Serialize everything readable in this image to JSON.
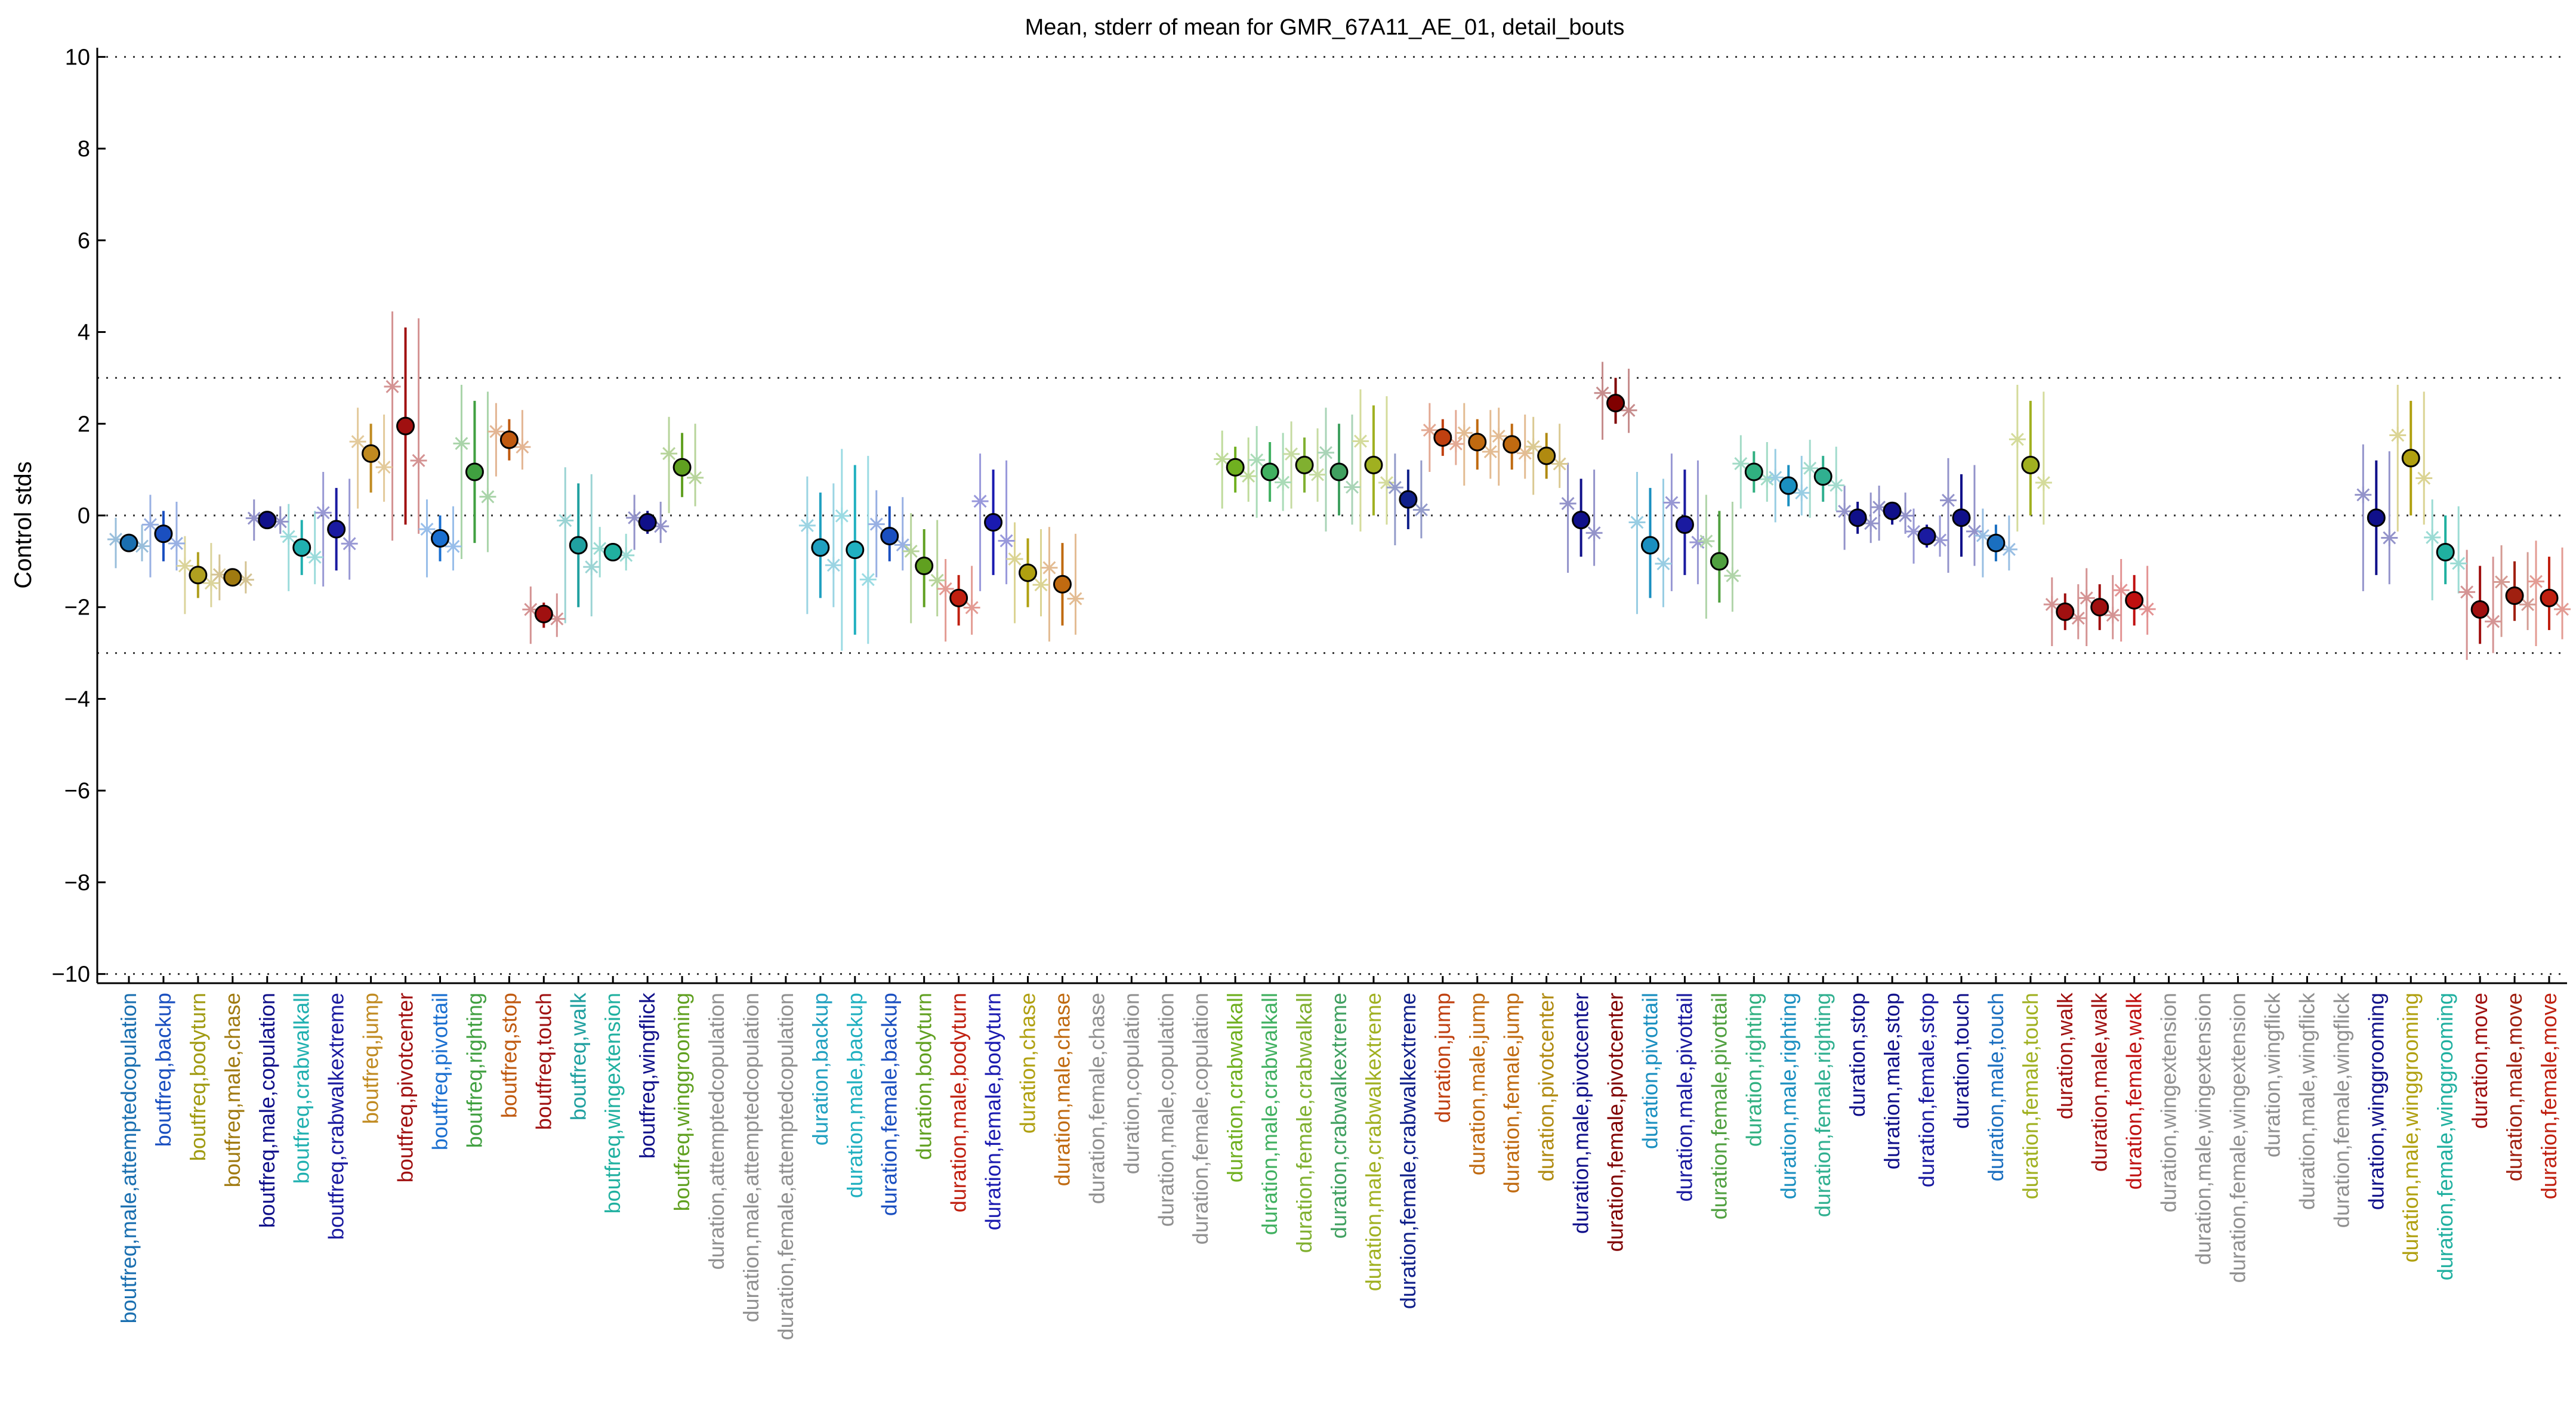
{
  "chart_data": {
    "type": "scatter",
    "title": "Mean, stderr of mean for GMR_67A11_AE_01, detail_bouts",
    "xlabel": "",
    "ylabel": "Control stds",
    "ylim": [
      -10.2,
      10.2
    ],
    "yticks": [
      -10,
      -8,
      -6,
      -4,
      -2,
      0,
      2,
      4,
      6,
      8,
      10
    ],
    "reference_lines": [
      10,
      3,
      0,
      -3,
      -10
    ],
    "grid": false,
    "categories": [
      "boutfreq,male,attemptedcopulation",
      "boutfreq,backup",
      "boutfreq,bodyturn",
      "boutfreq,male,chase",
      "boutfreq,male,copulation",
      "boutfreq,crabwalkall",
      "boutfreq,crabwalkextreme",
      "boutfreq,jump",
      "boutfreq,pivotcenter",
      "boutfreq,pivottail",
      "boutfreq,righting",
      "boutfreq,stop",
      "boutfreq,touch",
      "boutfreq,walk",
      "boutfreq,wingextension",
      "boutfreq,wingflick",
      "boutfreq,winggrooming",
      "duration,attemptedcopulation",
      "duration,male,attemptedcopulation",
      "duration,female,attemptedcopulation",
      "duration,backup",
      "duration,male,backup",
      "duration,female,backup",
      "duration,bodyturn",
      "duration,male,bodyturn",
      "duration,female,bodyturn",
      "duration,chase",
      "duration,male,chase",
      "duration,female,chase",
      "duration,copulation",
      "duration,male,copulation",
      "duration,female,copulation",
      "duration,crabwalkall",
      "duration,male,crabwalkall",
      "duration,female,crabwalkall",
      "duration,crabwalkextreme",
      "duration,male,crabwalkextreme",
      "duration,female,crabwalkextreme",
      "duration,jump",
      "duration,male,jump",
      "duration,female,jump",
      "duration,pivotcenter",
      "duration,male,pivotcenter",
      "duration,female,pivotcenter",
      "duration,pivottail",
      "duration,male,pivottail",
      "duration,female,pivottail",
      "duration,righting",
      "duration,male,righting",
      "duration,female,righting",
      "duration,stop",
      "duration,male,stop",
      "duration,female,stop",
      "duration,touch",
      "duration,male,touch",
      "duration,female,touch",
      "duration,walk",
      "duration,male,walk",
      "duration,female,walk",
      "duration,wingextension",
      "duration,male,wingextension",
      "duration,female,wingextension",
      "duration,wingflick",
      "duration,male,wingflick",
      "duration,female,wingflick",
      "duration,winggrooming",
      "duration,male,winggrooming",
      "duration,female,winggrooming",
      "duration,move",
      "duration,male,move",
      "duration,female,move"
    ],
    "label_colors": [
      "#1a6fb0",
      "#1a4fc0",
      "#a09a10",
      "#a07a10",
      "#10108a",
      "#20b0b0",
      "#1a1aa0",
      "#c08a20",
      "#a01010",
      "#1a6fd0",
      "#40a040",
      "#c05a10",
      "#a01010",
      "#20a0a0",
      "#20b0a0",
      "#10108a",
      "#60a020",
      "#909090",
      "#909090",
      "#909090",
      "#20a0c0",
      "#20b0c0",
      "#1a4fc0",
      "#60a020",
      "#c02010",
      "#1a1ab0",
      "#b0a010",
      "#c06a10",
      "#909090",
      "#909090",
      "#909090",
      "#909090",
      "#70b020",
      "#40b060",
      "#80b030",
      "#40a060",
      "#a0b020",
      "#10208a",
      "#c04010",
      "#c06a10",
      "#c06a10",
      "#b08a10",
      "#10108a",
      "#800000",
      "#1a8fc0",
      "#1a1aa0",
      "#50a040",
      "#30b080",
      "#1a8fc0",
      "#30b090",
      "#10108a",
      "#10108a",
      "#1a1aa0",
      "#10108a",
      "#1a6fc0",
      "#a0b020",
      "#a01010",
      "#a01010",
      "#c01010",
      "#909090",
      "#909090",
      "#909090",
      "#909090",
      "#909090",
      "#909090",
      "#10108a",
      "#b0a010",
      "#20b0a0",
      "#a01010",
      "#a02010",
      "#c02010"
    ],
    "marker_colors": [
      "#1a6fb0",
      "#1a4fc0",
      "#b0a020",
      "#a07a10",
      "#10108a",
      "#20b0b0",
      "#1a1aa0",
      "#c08a20",
      "#a01010",
      "#1a6fd0",
      "#40a040",
      "#c05a10",
      "#a01010",
      "#20a0a0",
      "#20b0a0",
      "#10108a",
      "#60a020",
      null,
      null,
      null,
      "#20a0c0",
      "#20b0c0",
      "#1a4fc0",
      "#60a020",
      "#c02010",
      "#1a1ab0",
      "#b0a010",
      "#c06a10",
      null,
      null,
      null,
      null,
      "#70b020",
      "#40b060",
      "#80b030",
      "#40a060",
      "#a0b020",
      "#10208a",
      "#c04010",
      "#c06a10",
      "#c06a10",
      "#b08a10",
      "#10108a",
      "#800000",
      "#1a8fc0",
      "#1a1aa0",
      "#50a040",
      "#30b080",
      "#1a8fc0",
      "#30b090",
      "#10108a",
      "#10108a",
      "#1a1aa0",
      "#10108a",
      "#1a6fc0",
      "#a0b020",
      "#a01010",
      "#a01010",
      "#c01010",
      null,
      null,
      null,
      null,
      null,
      null,
      "#10108a",
      "#b0a010",
      "#20b0a0",
      "#a01010",
      "#a02010",
      "#c02010"
    ],
    "mean": [
      -0.6,
      -0.4,
      -1.3,
      -1.35,
      -0.1,
      -0.7,
      -0.3,
      1.35,
      1.95,
      -0.5,
      0.95,
      1.65,
      -2.15,
      -0.65,
      -0.8,
      -0.15,
      1.05,
      null,
      null,
      null,
      -0.7,
      -0.75,
      -0.45,
      -1.1,
      -1.8,
      -0.15,
      -1.25,
      -1.5,
      null,
      null,
      null,
      null,
      1.05,
      0.95,
      1.1,
      0.95,
      1.1,
      0.35,
      1.7,
      1.6,
      1.55,
      1.3,
      -0.1,
      2.45,
      -0.65,
      -0.2,
      -1.0,
      0.95,
      0.65,
      0.85,
      -0.05,
      0.1,
      -0.45,
      -0.05,
      -0.6,
      1.1,
      -2.1,
      -2.0,
      -1.85,
      null,
      null,
      null,
      null,
      null,
      null,
      -0.05,
      1.25,
      -0.8,
      -2.05,
      -1.75,
      -1.8
    ],
    "stderr_low": [
      -0.8,
      -1.0,
      -1.8,
      -1.5,
      -0.2,
      -1.3,
      -1.2,
      0.5,
      -0.2,
      -1.0,
      -0.6,
      1.2,
      -2.45,
      -2.0,
      -1.0,
      -0.4,
      0.4,
      null,
      null,
      null,
      -1.8,
      -2.6,
      -1.0,
      -2.0,
      -2.4,
      -1.3,
      -2.0,
      -2.4,
      null,
      null,
      null,
      null,
      0.5,
      0.3,
      0.5,
      0.0,
      0.0,
      -0.3,
      1.3,
      1.0,
      1.0,
      0.8,
      -0.9,
      2.0,
      -1.8,
      -1.3,
      -1.9,
      0.5,
      0.2,
      0.3,
      -0.4,
      -0.2,
      -0.7,
      -0.9,
      -1.0,
      0.0,
      -2.5,
      -2.5,
      -2.4,
      null,
      null,
      null,
      null,
      null,
      null,
      -1.3,
      0.0,
      -1.5,
      -2.8,
      -2.3,
      -2.5
    ],
    "stderr_high": [
      -0.4,
      0.1,
      -0.8,
      -1.2,
      0.0,
      -0.1,
      0.6,
      2.0,
      4.1,
      0.0,
      2.5,
      2.1,
      -1.9,
      0.7,
      -0.6,
      0.1,
      1.8,
      null,
      null,
      null,
      0.5,
      1.1,
      0.2,
      -0.3,
      -1.3,
      1.0,
      -0.5,
      -0.6,
      null,
      null,
      null,
      null,
      1.5,
      1.6,
      1.7,
      2.0,
      2.4,
      1.0,
      2.1,
      2.1,
      2.0,
      1.8,
      0.8,
      3.0,
      0.6,
      1.0,
      0.1,
      1.4,
      1.1,
      1.3,
      0.3,
      0.3,
      -0.2,
      0.9,
      -0.2,
      2.5,
      -1.7,
      -1.5,
      -1.3,
      null,
      null,
      null,
      null,
      null,
      null,
      1.2,
      2.5,
      0.0,
      -1.1,
      -1.0,
      -0.9
    ]
  }
}
